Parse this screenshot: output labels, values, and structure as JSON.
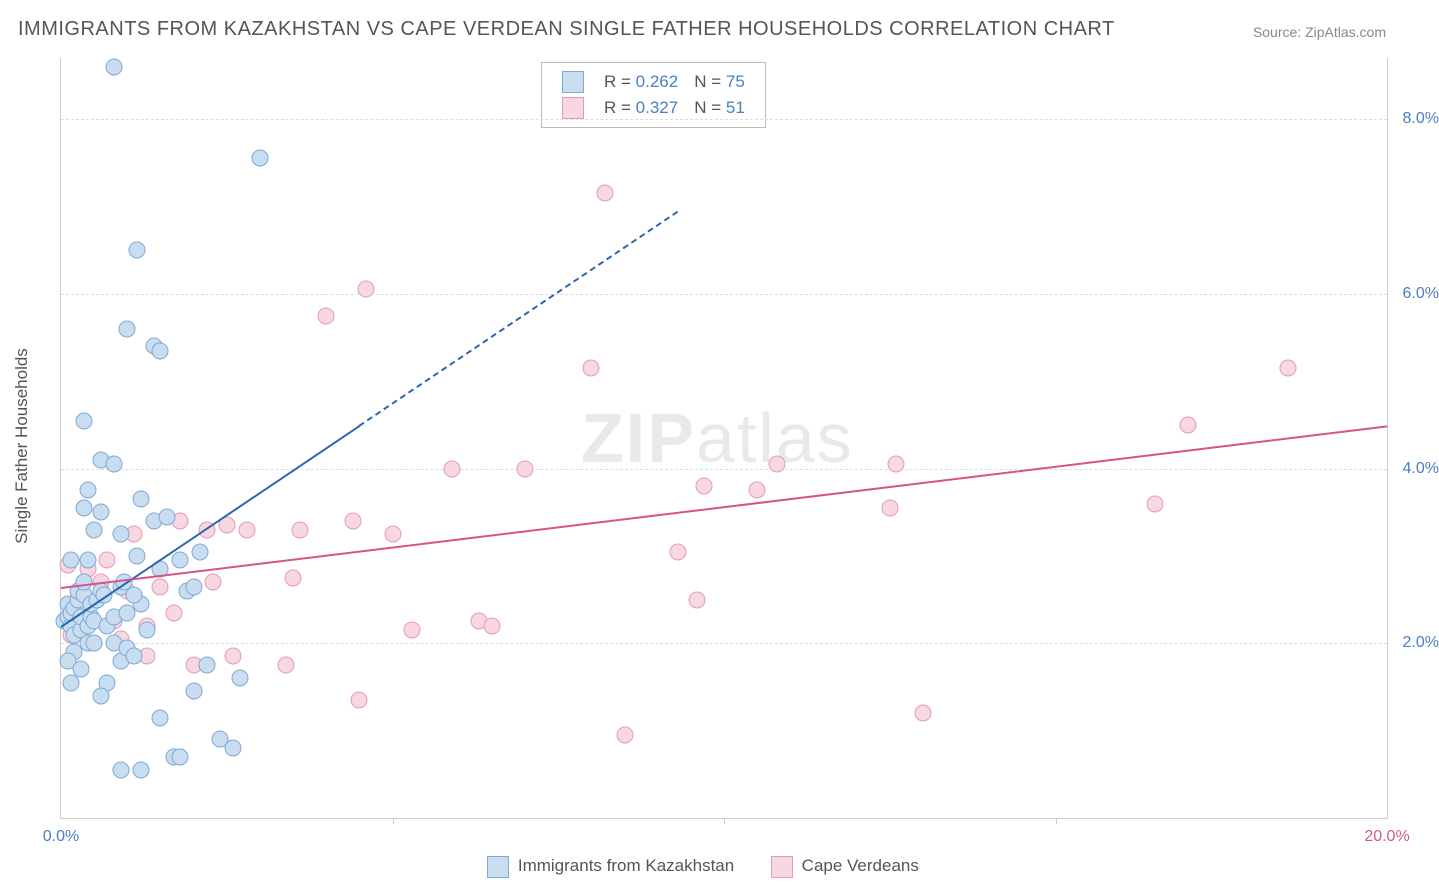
{
  "title": "IMMIGRANTS FROM KAZAKHSTAN VS CAPE VERDEAN SINGLE FATHER HOUSEHOLDS CORRELATION CHART",
  "source": "Source: ZipAtlas.com",
  "watermark_a": "ZIP",
  "watermark_b": "atlas",
  "chart": {
    "type": "scatter",
    "background_color": "#ffffff",
    "grid_color": "#dddddd",
    "axis_color": "#cccccc",
    "x_axis": {
      "min": 0.0,
      "max": 20.0,
      "ticks": [
        0.0,
        20.0
      ],
      "tick_labels": [
        "0.0%",
        "20.0%"
      ],
      "tick_color_left": "#4a7fc1",
      "tick_color_right": "#d6548b",
      "inner_tick_positions": [
        5.0,
        10.0,
        15.0
      ]
    },
    "y_axis": {
      "title": "Single Father Households",
      "min": 0.0,
      "max": 8.7,
      "ticks": [
        2.0,
        4.0,
        6.0,
        8.0
      ],
      "tick_labels": [
        "2.0%",
        "4.0%",
        "6.0%",
        "8.0%"
      ],
      "tick_color": "#4a7fc1"
    },
    "series_a": {
      "label": "Immigrants from Kazakhstan",
      "fill": "#c9ddf0",
      "stroke": "#7fa9d4",
      "line_color": "#2d66b0",
      "R": "0.262",
      "N": "75",
      "trend": {
        "x1": 0.0,
        "y1": 2.2,
        "x2": 4.5,
        "y2": 4.5,
        "dash_to_x": 9.3,
        "dash_to_y": 6.95
      },
      "points": [
        [
          0.05,
          2.25
        ],
        [
          0.1,
          2.3
        ],
        [
          0.1,
          2.45
        ],
        [
          0.15,
          2.2
        ],
        [
          0.15,
          2.35
        ],
        [
          0.2,
          2.1
        ],
        [
          0.2,
          2.4
        ],
        [
          0.25,
          2.5
        ],
        [
          0.25,
          2.6
        ],
        [
          0.3,
          2.15
        ],
        [
          0.3,
          2.3
        ],
        [
          0.35,
          2.55
        ],
        [
          0.35,
          2.7
        ],
        [
          0.4,
          2.0
        ],
        [
          0.4,
          2.2
        ],
        [
          0.45,
          2.3
        ],
        [
          0.45,
          2.45
        ],
        [
          0.5,
          2.0
        ],
        [
          0.5,
          2.25
        ],
        [
          0.55,
          2.5
        ],
        [
          0.6,
          2.6
        ],
        [
          0.7,
          1.55
        ],
        [
          0.7,
          2.2
        ],
        [
          0.8,
          2.0
        ],
        [
          0.8,
          2.3
        ],
        [
          0.9,
          1.8
        ],
        [
          0.9,
          2.65
        ],
        [
          1.0,
          1.95
        ],
        [
          1.0,
          2.35
        ],
        [
          1.1,
          1.85
        ],
        [
          1.2,
          2.45
        ],
        [
          1.2,
          3.65
        ],
        [
          1.3,
          2.15
        ],
        [
          1.4,
          3.4
        ],
        [
          1.5,
          1.15
        ],
        [
          1.5,
          2.85
        ],
        [
          1.6,
          3.45
        ],
        [
          1.7,
          0.7
        ],
        [
          1.8,
          0.7
        ],
        [
          1.9,
          2.6
        ],
        [
          2.0,
          1.45
        ],
        [
          2.1,
          3.05
        ],
        [
          2.2,
          1.75
        ],
        [
          2.4,
          0.9
        ],
        [
          2.6,
          0.8
        ],
        [
          2.7,
          1.6
        ],
        [
          0.35,
          3.55
        ],
        [
          0.4,
          2.95
        ],
        [
          0.5,
          3.3
        ],
        [
          0.6,
          3.5
        ],
        [
          0.9,
          3.25
        ],
        [
          1.15,
          3.0
        ],
        [
          0.15,
          2.95
        ],
        [
          0.4,
          3.75
        ],
        [
          0.6,
          4.1
        ],
        [
          0.8,
          4.05
        ],
        [
          0.2,
          1.9
        ],
        [
          0.1,
          1.8
        ],
        [
          0.3,
          1.7
        ],
        [
          0.15,
          1.55
        ],
        [
          1.0,
          5.6
        ],
        [
          1.4,
          5.4
        ],
        [
          1.15,
          6.5
        ],
        [
          0.8,
          8.6
        ],
        [
          0.35,
          4.55
        ],
        [
          1.5,
          5.35
        ],
        [
          0.6,
          1.4
        ],
        [
          1.8,
          2.95
        ],
        [
          0.9,
          0.55
        ],
        [
          1.2,
          0.55
        ],
        [
          2.0,
          2.65
        ],
        [
          3.0,
          7.55
        ],
        [
          0.95,
          2.7
        ],
        [
          0.65,
          2.55
        ],
        [
          1.1,
          2.55
        ]
      ]
    },
    "series_b": {
      "label": "Cape Verdeans",
      "fill": "#f7d7e1",
      "stroke": "#e59ab7",
      "line_color": "#d6548b",
      "R": "0.327",
      "N": "51",
      "trend": {
        "x1": 0.0,
        "y1": 2.65,
        "x2": 20.0,
        "y2": 4.5
      },
      "points": [
        [
          0.1,
          2.9
        ],
        [
          0.15,
          2.3
        ],
        [
          0.2,
          2.45
        ],
        [
          0.3,
          2.15
        ],
        [
          0.4,
          2.85
        ],
        [
          0.6,
          2.7
        ],
        [
          0.8,
          2.25
        ],
        [
          0.9,
          2.05
        ],
        [
          1.0,
          2.6
        ],
        [
          1.1,
          3.25
        ],
        [
          1.3,
          2.2
        ],
        [
          1.5,
          2.65
        ],
        [
          1.3,
          1.85
        ],
        [
          2.0,
          1.75
        ],
        [
          2.2,
          3.3
        ],
        [
          2.3,
          2.7
        ],
        [
          2.5,
          3.35
        ],
        [
          2.6,
          1.85
        ],
        [
          3.4,
          1.75
        ],
        [
          3.6,
          3.3
        ],
        [
          3.5,
          2.75
        ],
        [
          4.0,
          5.75
        ],
        [
          4.4,
          3.4
        ],
        [
          4.5,
          1.35
        ],
        [
          4.6,
          6.05
        ],
        [
          5.0,
          3.25
        ],
        [
          5.3,
          2.15
        ],
        [
          5.9,
          4.0
        ],
        [
          6.3,
          2.25
        ],
        [
          6.5,
          2.2
        ],
        [
          7.0,
          4.0
        ],
        [
          8.0,
          5.15
        ],
        [
          8.2,
          7.15
        ],
        [
          8.5,
          0.95
        ],
        [
          9.3,
          3.05
        ],
        [
          9.6,
          2.5
        ],
        [
          9.7,
          3.8
        ],
        [
          10.5,
          3.75
        ],
        [
          10.8,
          4.05
        ],
        [
          12.5,
          3.55
        ],
        [
          12.6,
          4.05
        ],
        [
          13.0,
          1.2
        ],
        [
          16.5,
          3.6
        ],
        [
          17.0,
          4.5
        ],
        [
          18.5,
          5.15
        ],
        [
          0.5,
          2.0
        ],
        [
          1.8,
          3.4
        ],
        [
          2.8,
          3.3
        ],
        [
          0.7,
          2.95
        ],
        [
          0.15,
          2.1
        ],
        [
          1.7,
          2.35
        ]
      ]
    },
    "legend_top": {
      "R_label": "R =",
      "N_label": "N ="
    }
  }
}
